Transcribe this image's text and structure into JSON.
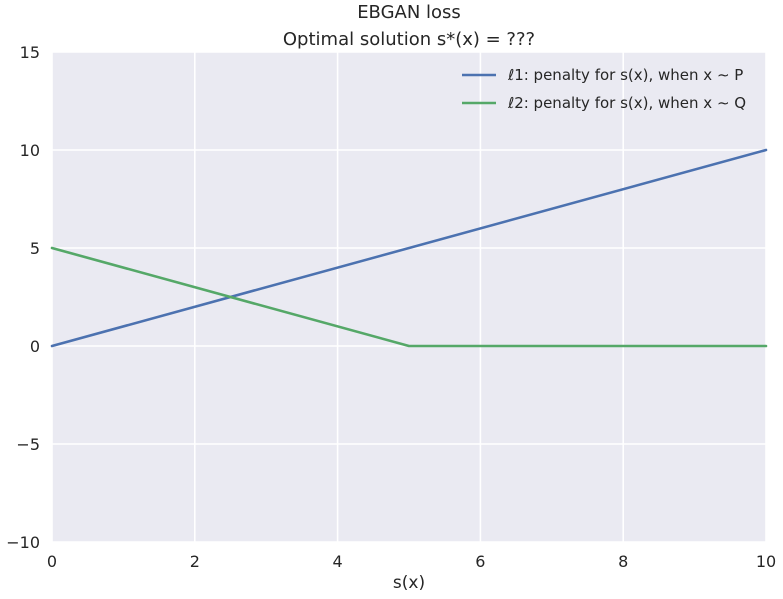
{
  "chart_data": {
    "type": "line",
    "title": "EBGAN loss",
    "subtitle": "Optimal solution s*(x) = ???",
    "xlabel": "s(x)",
    "ylabel": "",
    "xlim": [
      0,
      10
    ],
    "ylim": [
      -10,
      15
    ],
    "xticks": [
      0,
      2,
      4,
      6,
      8,
      10
    ],
    "yticks": [
      -10,
      -5,
      0,
      5,
      10,
      15
    ],
    "xtick_labels": [
      "0",
      "2",
      "4",
      "6",
      "8",
      "10"
    ],
    "ytick_labels": [
      "−10",
      "−5",
      "0",
      "5",
      "10",
      "15"
    ],
    "grid": true,
    "background": "#EAEAF2",
    "grid_color": "#FFFFFF",
    "legend_position": "top-right",
    "series": [
      {
        "name": "ℓ1: penalty for s(x), when x ∼ P",
        "color": "#4C72B0",
        "x": [
          0,
          10
        ],
        "y": [
          0,
          10
        ]
      },
      {
        "name": "ℓ2: penalty for s(x), when x ∼ Q",
        "color": "#55A868",
        "x": [
          0,
          5,
          5.2,
          10
        ],
        "y": [
          5,
          0,
          0,
          0
        ]
      }
    ]
  }
}
